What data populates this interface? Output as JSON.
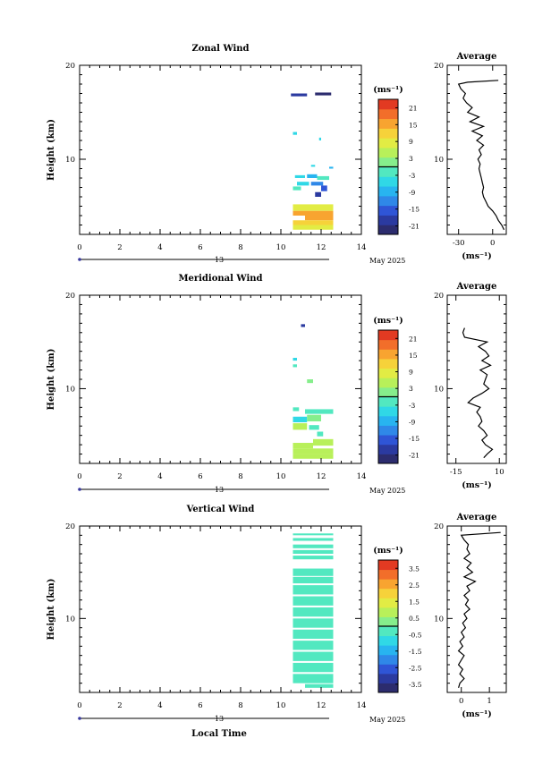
{
  "chart_data": [
    {
      "type": "heatmap",
      "title": "Zonal Wind",
      "ylabel": "Height (km)",
      "xlim": [
        0,
        14
      ],
      "ylim": [
        2,
        20
      ],
      "x_ticks": [
        "0",
        "2",
        "4",
        "6",
        "8",
        "10",
        "12",
        "14"
      ],
      "y_ticks": [
        "10",
        "20"
      ],
      "colorbar": {
        "unit": "(ms⁻¹)",
        "ticks": [
          "21",
          "15",
          "9",
          "3",
          "-3",
          "-9",
          "-15",
          "-21"
        ],
        "range": [
          -24,
          24
        ]
      },
      "average_panel": {
        "title": "Average",
        "x_ticks": [
          "-30",
          "0"
        ],
        "xlabel": "(ms⁻¹)",
        "xlim": [
          -40,
          12
        ]
      },
      "cells": [
        {
          "x0": 10.5,
          "x1": 11.3,
          "y0": 16.7,
          "y1": 17.0,
          "value": -20
        },
        {
          "x0": 11.7,
          "x1": 12.5,
          "y0": 16.8,
          "y1": 17.1,
          "value": -21
        },
        {
          "x0": 10.6,
          "x1": 10.8,
          "y0": 12.6,
          "y1": 12.9,
          "value": -4
        },
        {
          "x0": 11.9,
          "x1": 12.0,
          "y0": 12.0,
          "y1": 12.3,
          "value": -6
        },
        {
          "x0": 11.5,
          "x1": 11.7,
          "y0": 9.2,
          "y1": 9.4,
          "value": -5
        },
        {
          "x0": 12.4,
          "x1": 12.6,
          "y0": 9.0,
          "y1": 9.2,
          "value": -8
        },
        {
          "x0": 10.7,
          "x1": 11.2,
          "y0": 8.0,
          "y1": 8.3,
          "value": -5
        },
        {
          "x0": 11.3,
          "x1": 11.8,
          "y0": 8.0,
          "y1": 8.4,
          "value": -8
        },
        {
          "x0": 11.8,
          "x1": 12.4,
          "y0": 7.8,
          "y1": 8.2,
          "value": -2
        },
        {
          "x0": 10.8,
          "x1": 11.4,
          "y0": 7.2,
          "y1": 7.6,
          "value": -6
        },
        {
          "x0": 11.5,
          "x1": 12.1,
          "y0": 7.2,
          "y1": 7.6,
          "value": -12
        },
        {
          "x0": 12.0,
          "x1": 12.3,
          "y0": 6.6,
          "y1": 7.2,
          "value": -14
        },
        {
          "x0": 10.6,
          "x1": 11.0,
          "y0": 6.7,
          "y1": 7.1,
          "value": -1
        },
        {
          "x0": 11.7,
          "x1": 12.0,
          "y0": 6.0,
          "y1": 6.5,
          "value": -18
        },
        {
          "x0": 10.6,
          "x1": 12.6,
          "y0": 4.5,
          "y1": 5.2,
          "value": 10
        },
        {
          "x0": 10.6,
          "x1": 12.6,
          "y0": 4.0,
          "y1": 4.5,
          "value": 14
        },
        {
          "x0": 11.2,
          "x1": 12.6,
          "y0": 3.5,
          "y1": 4.2,
          "value": 17
        },
        {
          "x0": 10.6,
          "x1": 12.6,
          "y0": 3.0,
          "y1": 3.5,
          "value": 12
        },
        {
          "x0": 10.6,
          "x1": 12.6,
          "y0": 2.5,
          "y1": 3.0,
          "value": 9
        }
      ],
      "average_profile": [
        {
          "h": 2.5,
          "v": 10
        },
        {
          "h": 3.0,
          "v": 8
        },
        {
          "h": 3.5,
          "v": 5
        },
        {
          "h": 4.0,
          "v": 3
        },
        {
          "h": 4.5,
          "v": 0
        },
        {
          "h": 5.0,
          "v": -4
        },
        {
          "h": 5.5,
          "v": -6
        },
        {
          "h": 6.0,
          "v": -8
        },
        {
          "h": 6.5,
          "v": -9
        },
        {
          "h": 7.0,
          "v": -8
        },
        {
          "h": 7.5,
          "v": -9
        },
        {
          "h": 8.0,
          "v": -10
        },
        {
          "h": 8.5,
          "v": -11
        },
        {
          "h": 9.0,
          "v": -12
        },
        {
          "h": 9.5,
          "v": -11
        },
        {
          "h": 10.0,
          "v": -13
        },
        {
          "h": 10.5,
          "v": -10
        },
        {
          "h": 11.0,
          "v": -12
        },
        {
          "h": 11.5,
          "v": -8
        },
        {
          "h": 12.0,
          "v": -14
        },
        {
          "h": 12.5,
          "v": -9
        },
        {
          "h": 13.0,
          "v": -18
        },
        {
          "h": 13.5,
          "v": -8
        },
        {
          "h": 14.0,
          "v": -20
        },
        {
          "h": 14.5,
          "v": -12
        },
        {
          "h": 15.0,
          "v": -22
        },
        {
          "h": 15.5,
          "v": -18
        },
        {
          "h": 16.0,
          "v": -23
        },
        {
          "h": 16.5,
          "v": -26
        },
        {
          "h": 17.0,
          "v": -24
        },
        {
          "h": 17.5,
          "v": -28
        },
        {
          "h": 18.0,
          "v": -30
        },
        {
          "h": 18.2,
          "v": -22
        },
        {
          "h": 18.4,
          "v": 5
        }
      ]
    },
    {
      "type": "heatmap",
      "title": "Meridional Wind",
      "ylabel": "Height (km)",
      "xlim": [
        0,
        14
      ],
      "ylim": [
        2,
        20
      ],
      "x_ticks": [
        "0",
        "2",
        "4",
        "6",
        "8",
        "10",
        "12",
        "14"
      ],
      "y_ticks": [
        "10",
        "20"
      ],
      "colorbar": {
        "unit": "(ms⁻¹)",
        "ticks": [
          "21",
          "15",
          "9",
          "3",
          "-3",
          "-9",
          "-15",
          "-21"
        ],
        "range": [
          -24,
          24
        ]
      },
      "average_panel": {
        "title": "Average",
        "x_ticks": [
          "-15",
          "10"
        ],
        "xlabel": "(ms⁻¹)",
        "xlim": [
          -20,
          14
        ]
      },
      "cells": [
        {
          "x0": 11.0,
          "x1": 11.2,
          "y0": 16.6,
          "y1": 16.9,
          "value": -20
        },
        {
          "x0": 10.6,
          "x1": 10.8,
          "y0": 13.0,
          "y1": 13.3,
          "value": -4
        },
        {
          "x0": 10.6,
          "x1": 10.8,
          "y0": 12.3,
          "y1": 12.6,
          "value": -3
        },
        {
          "x0": 11.3,
          "x1": 11.6,
          "y0": 10.6,
          "y1": 11.0,
          "value": 2
        },
        {
          "x0": 10.6,
          "x1": 10.9,
          "y0": 7.6,
          "y1": 8.0,
          "value": -3
        },
        {
          "x0": 11.2,
          "x1": 12.6,
          "y0": 7.3,
          "y1": 7.8,
          "value": -1
        },
        {
          "x0": 10.6,
          "x1": 11.3,
          "y0": 6.4,
          "y1": 7.0,
          "value": -4
        },
        {
          "x0": 11.3,
          "x1": 12.0,
          "y0": 6.5,
          "y1": 7.2,
          "value": 1
        },
        {
          "x0": 10.6,
          "x1": 11.3,
          "y0": 5.6,
          "y1": 6.3,
          "value": 4
        },
        {
          "x0": 11.4,
          "x1": 11.9,
          "y0": 5.6,
          "y1": 6.1,
          "value": -2
        },
        {
          "x0": 11.8,
          "x1": 12.1,
          "y0": 4.9,
          "y1": 5.4,
          "value": -1
        },
        {
          "x0": 10.6,
          "x1": 11.6,
          "y0": 3.6,
          "y1": 4.2,
          "value": 5
        },
        {
          "x0": 11.6,
          "x1": 12.6,
          "y0": 3.9,
          "y1": 4.6,
          "value": 4
        },
        {
          "x0": 10.6,
          "x1": 12.6,
          "y0": 3.0,
          "y1": 3.6,
          "value": 5
        },
        {
          "x0": 10.6,
          "x1": 12.6,
          "y0": 2.5,
          "y1": 3.0,
          "value": 4
        }
      ],
      "average_profile": [
        {
          "h": 2.6,
          "v": 1
        },
        {
          "h": 3.0,
          "v": 3
        },
        {
          "h": 3.5,
          "v": 6
        },
        {
          "h": 4.0,
          "v": 2
        },
        {
          "h": 4.5,
          "v": 0
        },
        {
          "h": 5.0,
          "v": 3
        },
        {
          "h": 5.5,
          "v": 1
        },
        {
          "h": 6.0,
          "v": -2
        },
        {
          "h": 6.5,
          "v": 0
        },
        {
          "h": 7.0,
          "v": -1
        },
        {
          "h": 7.5,
          "v": -3
        },
        {
          "h": 8.0,
          "v": -1
        },
        {
          "h": 8.5,
          "v": -8
        },
        {
          "h": 9.0,
          "v": -5
        },
        {
          "h": 9.5,
          "v": 0
        },
        {
          "h": 10.0,
          "v": 4
        },
        {
          "h": 10.5,
          "v": 1
        },
        {
          "h": 11.0,
          "v": 2
        },
        {
          "h": 11.5,
          "v": 3
        },
        {
          "h": 12.0,
          "v": -1
        },
        {
          "h": 12.5,
          "v": 5
        },
        {
          "h": 13.0,
          "v": 0
        },
        {
          "h": 13.5,
          "v": 4
        },
        {
          "h": 14.0,
          "v": 2
        },
        {
          "h": 14.5,
          "v": -2
        },
        {
          "h": 15.0,
          "v": 3
        },
        {
          "h": 15.5,
          "v": -10
        },
        {
          "h": 16.0,
          "v": -11
        },
        {
          "h": 16.5,
          "v": -10
        }
      ]
    },
    {
      "type": "heatmap",
      "title": "Vertical Wind",
      "ylabel": "Height (km)",
      "xlabel": "Local Time",
      "xlim": [
        0,
        14
      ],
      "ylim": [
        2,
        20
      ],
      "x_ticks": [
        "0",
        "2",
        "4",
        "6",
        "8",
        "10",
        "12",
        "14"
      ],
      "y_ticks": [
        "10",
        "20"
      ],
      "colorbar": {
        "unit": "(ms⁻¹)",
        "ticks": [
          "3.5",
          "2.5",
          "1.5",
          "0.5",
          "-0.5",
          "-1.5",
          "-2.5",
          "-3.5"
        ],
        "range": [
          -4,
          4
        ]
      },
      "average_panel": {
        "title": "Average",
        "x_ticks": [
          "0",
          "1"
        ],
        "xlabel": "(ms⁻¹)",
        "xlim": [
          -0.5,
          1.6
        ]
      },
      "cells": [
        {
          "x0": 10.6,
          "x1": 12.6,
          "y0": 19.0,
          "y1": 19.2,
          "value": -0.4
        },
        {
          "x0": 10.6,
          "x1": 12.6,
          "y0": 18.4,
          "y1": 18.7,
          "value": -0.3
        },
        {
          "x0": 10.6,
          "x1": 12.6,
          "y0": 17.6,
          "y1": 18.0,
          "value": -0.3
        },
        {
          "x0": 10.6,
          "x1": 12.6,
          "y0": 17.0,
          "y1": 17.4,
          "value": -0.2
        },
        {
          "x0": 10.6,
          "x1": 12.6,
          "y0": 16.4,
          "y1": 16.8,
          "value": -0.3
        },
        {
          "x0": 10.6,
          "x1": 12.6,
          "y0": 14.6,
          "y1": 15.4,
          "value": -0.4
        },
        {
          "x0": 10.6,
          "x1": 12.6,
          "y0": 13.8,
          "y1": 14.5,
          "value": -0.3
        },
        {
          "x0": 10.6,
          "x1": 12.6,
          "y0": 12.6,
          "y1": 13.6,
          "value": -0.4
        },
        {
          "x0": 10.6,
          "x1": 12.6,
          "y0": 11.4,
          "y1": 12.4,
          "value": -0.3
        },
        {
          "x0": 10.6,
          "x1": 12.6,
          "y0": 10.2,
          "y1": 11.2,
          "value": -0.3
        },
        {
          "x0": 10.6,
          "x1": 12.6,
          "y0": 9.0,
          "y1": 10.0,
          "value": -0.3
        },
        {
          "x0": 10.6,
          "x1": 12.6,
          "y0": 7.8,
          "y1": 8.8,
          "value": -0.4
        },
        {
          "x0": 10.6,
          "x1": 12.6,
          "y0": 6.6,
          "y1": 7.6,
          "value": -0.3
        },
        {
          "x0": 10.6,
          "x1": 12.6,
          "y0": 5.4,
          "y1": 6.4,
          "value": -0.3
        },
        {
          "x0": 10.6,
          "x1": 12.6,
          "y0": 4.2,
          "y1": 5.2,
          "value": -0.3
        },
        {
          "x0": 10.6,
          "x1": 12.6,
          "y0": 3.0,
          "y1": 4.0,
          "value": -0.3
        },
        {
          "x0": 11.2,
          "x1": 12.6,
          "y0": 2.5,
          "y1": 2.9,
          "value": -0.3
        }
      ],
      "average_profile": [
        {
          "h": 2.5,
          "v": -0.1
        },
        {
          "h": 3.0,
          "v": -0.05
        },
        {
          "h": 3.5,
          "v": 0.1
        },
        {
          "h": 4.0,
          "v": -0.05
        },
        {
          "h": 4.5,
          "v": 0.05
        },
        {
          "h": 5.0,
          "v": -0.1
        },
        {
          "h": 5.5,
          "v": 0.0
        },
        {
          "h": 6.0,
          "v": 0.1
        },
        {
          "h": 6.5,
          "v": -0.1
        },
        {
          "h": 7.0,
          "v": 0.05
        },
        {
          "h": 7.5,
          "v": -0.05
        },
        {
          "h": 8.0,
          "v": 0.1
        },
        {
          "h": 8.5,
          "v": 0.0
        },
        {
          "h": 9.0,
          "v": 0.15
        },
        {
          "h": 9.5,
          "v": 0.05
        },
        {
          "h": 10.0,
          "v": 0.2
        },
        {
          "h": 10.5,
          "v": 0.1
        },
        {
          "h": 11.0,
          "v": 0.3
        },
        {
          "h": 11.5,
          "v": 0.15
        },
        {
          "h": 12.0,
          "v": 0.25
        },
        {
          "h": 12.5,
          "v": 0.1
        },
        {
          "h": 13.0,
          "v": 0.3
        },
        {
          "h": 13.5,
          "v": 0.2
        },
        {
          "h": 14.0,
          "v": 0.5
        },
        {
          "h": 14.5,
          "v": 0.1
        },
        {
          "h": 15.0,
          "v": 0.4
        },
        {
          "h": 15.5,
          "v": 0.2
        },
        {
          "h": 16.0,
          "v": 0.35
        },
        {
          "h": 16.5,
          "v": 0.1
        },
        {
          "h": 17.0,
          "v": 0.3
        },
        {
          "h": 17.5,
          "v": 0.2
        },
        {
          "h": 18.0,
          "v": 0.25
        },
        {
          "h": 18.5,
          "v": 0.1
        },
        {
          "h": 19.0,
          "v": 0.0
        },
        {
          "h": 19.3,
          "v": 1.4
        }
      ]
    }
  ],
  "date_axis": {
    "tick_label": "13",
    "month_label": "May 2025"
  }
}
